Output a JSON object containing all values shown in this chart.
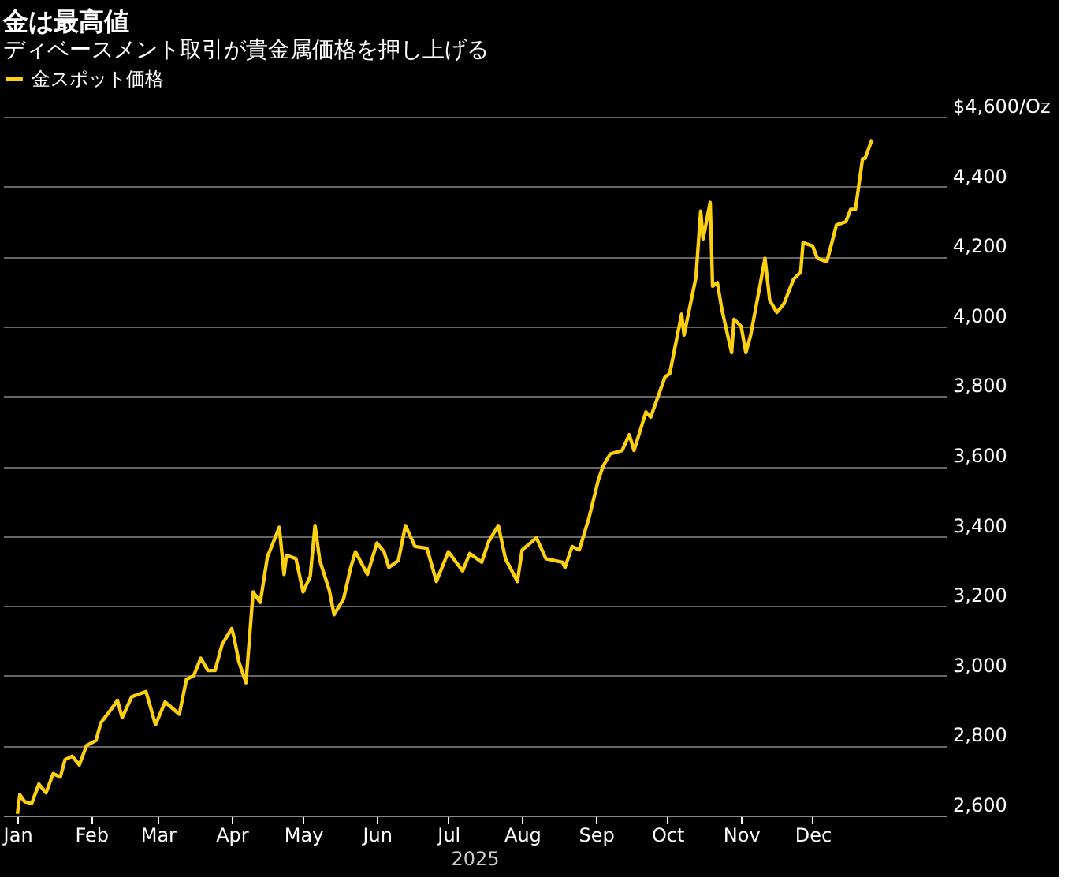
{
  "chart_data": {
    "type": "line",
    "title": "金は最高値",
    "subtitle": "ディベースメント取引が貴金属価格を押し上げる",
    "xlabel": "2025",
    "xlim": [
      "2024-12-26",
      "2026-01-26"
    ],
    "xticks": [
      {
        "value": "2025-01-01",
        "label": "Jan"
      },
      {
        "value": "2025-02-01",
        "label": "Feb"
      },
      {
        "value": "2025-03-01",
        "label": "Mar"
      },
      {
        "value": "2025-04-01",
        "label": "Apr"
      },
      {
        "value": "2025-05-01",
        "label": "May"
      },
      {
        "value": "2025-06-01",
        "label": "Jun"
      },
      {
        "value": "2025-07-01",
        "label": "Jul"
      },
      {
        "value": "2025-08-01",
        "label": "Aug"
      },
      {
        "value": "2025-09-01",
        "label": "Sep"
      },
      {
        "value": "2025-10-01",
        "label": "Oct"
      },
      {
        "value": "2025-11-01",
        "label": "Nov"
      },
      {
        "value": "2025-12-01",
        "label": "Dec"
      }
    ],
    "ylim": [
      2600,
      4600
    ],
    "yticks": [
      {
        "value": 2600,
        "label": "2,600"
      },
      {
        "value": 2800,
        "label": "2,800"
      },
      {
        "value": 3000,
        "label": "3,000"
      },
      {
        "value": 3200,
        "label": "3,200"
      },
      {
        "value": 3400,
        "label": "3,400"
      },
      {
        "value": 3600,
        "label": "3,600"
      },
      {
        "value": 3800,
        "label": "3,800"
      },
      {
        "value": 4000,
        "label": "4,000"
      },
      {
        "value": 4200,
        "label": "4,200"
      },
      {
        "value": 4400,
        "label": "4,400"
      },
      {
        "value": 4600,
        "label": "$4,600/Oz"
      }
    ],
    "grid": "y",
    "legend": "top left",
    "line_style": "solid",
    "marker": "none",
    "x": [
      "2025-01-01",
      "2025-01-02",
      "2025-01-04",
      "2025-01-07",
      "2025-01-10",
      "2025-01-13",
      "2025-01-16",
      "2025-01-19",
      "2025-01-21",
      "2025-01-24",
      "2025-01-27",
      "2025-01-30",
      "2025-02-03",
      "2025-02-05",
      "2025-02-10",
      "2025-02-12",
      "2025-02-14",
      "2025-02-18",
      "2025-02-24",
      "2025-02-28",
      "2025-03-04",
      "2025-03-10",
      "2025-03-13",
      "2025-03-16",
      "2025-03-19",
      "2025-03-22",
      "2025-03-25",
      "2025-03-28",
      "2025-04-01",
      "2025-04-02",
      "2025-04-04",
      "2025-04-07",
      "2025-04-10",
      "2025-04-13",
      "2025-04-16",
      "2025-04-21",
      "2025-04-23",
      "2025-04-24",
      "2025-04-28",
      "2025-05-01",
      "2025-05-04",
      "2025-05-06",
      "2025-05-08",
      "2025-05-12",
      "2025-05-14",
      "2025-05-18",
      "2025-05-21",
      "2025-05-23",
      "2025-05-28",
      "2025-06-01",
      "2025-06-04",
      "2025-06-06",
      "2025-06-10",
      "2025-06-13",
      "2025-06-17",
      "2025-06-22",
      "2025-06-26",
      "2025-07-01",
      "2025-07-07",
      "2025-07-10",
      "2025-07-15",
      "2025-07-18",
      "2025-07-22",
      "2025-07-25",
      "2025-07-30",
      "2025-08-01",
      "2025-08-07",
      "2025-08-11",
      "2025-08-18",
      "2025-08-19",
      "2025-08-22",
      "2025-08-25",
      "2025-08-29",
      "2025-09-02",
      "2025-09-04",
      "2025-09-07",
      "2025-09-12",
      "2025-09-15",
      "2025-09-17",
      "2025-09-22",
      "2025-09-24",
      "2025-09-30",
      "2025-10-02",
      "2025-10-07",
      "2025-10-08",
      "2025-10-13",
      "2025-10-15",
      "2025-10-16",
      "2025-10-19",
      "2025-10-20",
      "2025-10-22",
      "2025-10-24",
      "2025-10-28",
      "2025-10-29",
      "2025-11-01",
      "2025-11-03",
      "2025-11-05",
      "2025-11-09",
      "2025-11-11",
      "2025-11-13",
      "2025-11-16",
      "2025-11-19",
      "2025-11-23",
      "2025-11-26",
      "2025-11-27",
      "2025-12-01",
      "2025-12-03",
      "2025-12-07",
      "2025-12-11",
      "2025-12-15",
      "2025-12-17",
      "2025-12-19",
      "2025-12-22",
      "2025-12-23",
      "2025-12-26"
    ],
    "series": [
      {
        "name": "金スポット価格",
        "color": "#fdd00f",
        "values": [
          2605,
          2660,
          2640,
          2635,
          2690,
          2665,
          2720,
          2710,
          2760,
          2770,
          2745,
          2800,
          2815,
          2865,
          2910,
          2930,
          2880,
          2940,
          2955,
          2860,
          2925,
          2890,
          2990,
          3000,
          3050,
          3015,
          3015,
          3090,
          3135,
          3110,
          3040,
          2980,
          3240,
          3210,
          3340,
          3425,
          3290,
          3345,
          3335,
          3240,
          3285,
          3430,
          3330,
          3245,
          3175,
          3220,
          3310,
          3355,
          3290,
          3380,
          3355,
          3310,
          3330,
          3430,
          3370,
          3365,
          3270,
          3355,
          3300,
          3350,
          3325,
          3385,
          3430,
          3335,
          3270,
          3360,
          3395,
          3335,
          3325,
          3310,
          3370,
          3360,
          3450,
          3560,
          3600,
          3635,
          3645,
          3690,
          3645,
          3755,
          3740,
          3855,
          3865,
          4035,
          3975,
          4140,
          4330,
          4250,
          4355,
          4115,
          4125,
          4045,
          3925,
          4020,
          4000,
          3925,
          3975,
          4120,
          4195,
          4075,
          4040,
          4065,
          4135,
          4155,
          4240,
          4230,
          4195,
          4185,
          4290,
          4300,
          4335,
          4335,
          4480,
          4480,
          4535
        ]
      }
    ]
  }
}
